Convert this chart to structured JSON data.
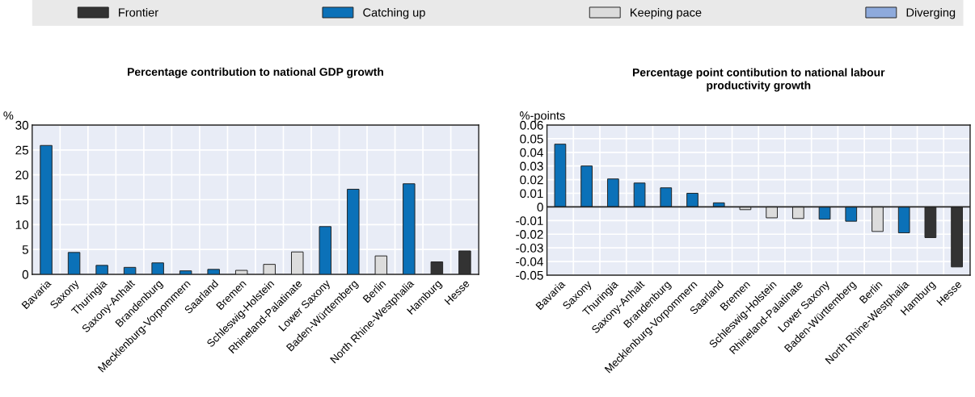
{
  "chart_data": [
    {
      "type": "bar",
      "title": "Percentage contribution to national GDP growth",
      "ylabel": "%",
      "categories": [
        "Bavaria",
        "Saxony",
        "Thuringia",
        "Saxony-Anhalt",
        "Brandenburg",
        "Mecklenburg-Vorpommern",
        "Saarland",
        "Bremen",
        "Schleswig-Holstein",
        "Rhineland-Palatinate",
        "Lower Saxony",
        "Baden-Württemberg",
        "Berlin",
        "North Rhine-Westphalia",
        "Hamburg",
        "Hesse"
      ],
      "series": [
        {
          "name": "Frontier",
          "color": "#333333",
          "values": [
            null,
            null,
            null,
            null,
            null,
            null,
            null,
            null,
            null,
            null,
            null,
            null,
            null,
            null,
            2.5,
            4.7
          ]
        },
        {
          "name": "Catching up",
          "color": "#0b71b8",
          "values": [
            25.9,
            4.4,
            1.8,
            1.4,
            2.3,
            0.7,
            1.0,
            null,
            null,
            null,
            9.6,
            17.1,
            null,
            18.2,
            null,
            null
          ]
        },
        {
          "name": "Keeping pace",
          "color": "#dcdcdc",
          "values": [
            null,
            null,
            null,
            null,
            null,
            null,
            null,
            0.8,
            2.0,
            4.5,
            null,
            null,
            3.7,
            null,
            null,
            null
          ]
        },
        {
          "name": "Diverging",
          "color": "#8eaadc",
          "values": [
            null,
            null,
            null,
            null,
            null,
            null,
            null,
            null,
            null,
            null,
            null,
            null,
            null,
            null,
            null,
            null
          ]
        }
      ],
      "ylim": [
        0,
        30
      ],
      "yticks": [
        0,
        5,
        10,
        15,
        20,
        25,
        30
      ],
      "grid": true,
      "legend": "top"
    },
    {
      "type": "bar",
      "title": "Percentage point contibution to national labour\nproductivity growth",
      "ylabel": "%-points",
      "categories": [
        "Bavaria",
        "Saxony",
        "Thuringia",
        "Saxony-Anhalt",
        "Brandenburg",
        "Mecklenburg-Vorpommern",
        "Saarland",
        "Bremen",
        "Schleswig-Holstein",
        "Rhineland-Palatinate",
        "Lower Saxony",
        "Baden-Württemberg",
        "Berlin",
        "North Rhine-Westphalia",
        "Hamburg",
        "Hesse"
      ],
      "series": [
        {
          "color": "#333333",
          "values": [
            null,
            null,
            null,
            null,
            null,
            null,
            null,
            null,
            null,
            null,
            null,
            null,
            null,
            null,
            -0.0225,
            -0.044
          ]
        },
        {
          "color": "#0b71b8",
          "values": [
            0.046,
            0.03,
            0.0205,
            0.0175,
            0.014,
            0.01,
            0.003,
            null,
            null,
            null,
            -0.009,
            -0.0105,
            null,
            -0.019,
            null,
            null
          ]
        },
        {
          "color": "#dcdcdc",
          "values": [
            null,
            null,
            null,
            null,
            null,
            null,
            null,
            -0.002,
            -0.008,
            -0.0085,
            null,
            null,
            -0.018,
            null,
            null,
            null
          ]
        },
        {
          "color": "#8eaadc",
          "values": [
            null,
            null,
            null,
            null,
            null,
            null,
            null,
            null,
            null,
            null,
            null,
            null,
            null,
            null,
            null,
            null
          ]
        }
      ],
      "ylim": [
        -0.05,
        0.06
      ],
      "yticks": [
        {
          "value": -0.05,
          "label": "-0.05"
        },
        {
          "value": -0.04,
          "label": "-0.04"
        },
        {
          "value": -0.03,
          "label": "-0.03"
        },
        {
          "value": -0.02,
          "label": "-0.02"
        },
        {
          "value": -0.01,
          "label": "-0.01"
        },
        0,
        0.01,
        0.02,
        0.03,
        0.04,
        0.05,
        0.06
      ],
      "grid": true
    }
  ]
}
